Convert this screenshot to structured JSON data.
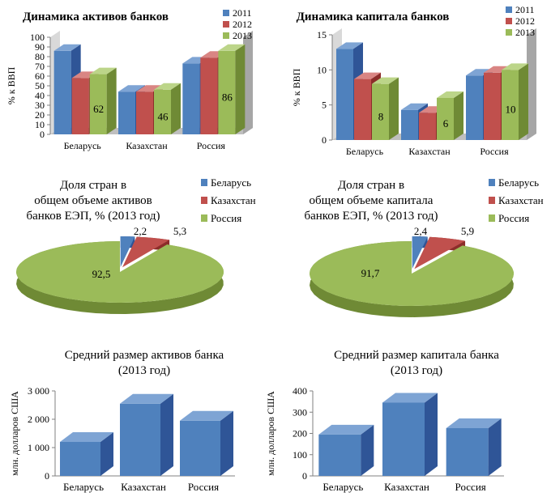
{
  "colors": {
    "blue": "#4f81bd",
    "blue_side": "#2f5597",
    "blue_top": "#7ea4d4",
    "red": "#c0504d",
    "red_side": "#8c2d2a",
    "red_top": "#d98583",
    "green": "#9bbb59",
    "green_side": "#6f8a35",
    "green_top": "#bcd589",
    "wall": "#bfbfbf",
    "wall_side": "#a6a6a6",
    "axis": "#808080"
  },
  "chart_data": [
    {
      "id": "assets-dynamics",
      "type": "bar",
      "title": "Динамика активов банков",
      "ylabel": "% к ВВП",
      "xlabel": "",
      "ylim": [
        0,
        100
      ],
      "yticks": [
        "0",
        "10",
        "20",
        "30",
        "40",
        "50",
        "60",
        "70",
        "80",
        "90",
        "100"
      ],
      "categories": [
        "Беларусь",
        "Казахстан",
        "Россия"
      ],
      "series": [
        {
          "name": "2011",
          "values": [
            86,
            44,
            73
          ]
        },
        {
          "name": "2012",
          "values": [
            58,
            44,
            79
          ]
        },
        {
          "name": "2013",
          "values": [
            62,
            46,
            86
          ]
        }
      ],
      "data_labels": [
        "62",
        "46",
        "86"
      ],
      "legend": "top-right"
    },
    {
      "id": "capital-dynamics",
      "type": "bar",
      "title": "Динамика капитала банков",
      "ylabel": "% к ВВП",
      "xlabel": "",
      "ylim": [
        0,
        15
      ],
      "yticks": [
        "0",
        "5",
        "10",
        "15"
      ],
      "categories": [
        "Беларусь",
        "Казахстан",
        "Россия"
      ],
      "series": [
        {
          "name": "2011",
          "values": [
            13,
            4.3,
            9.2
          ]
        },
        {
          "name": "2012",
          "values": [
            8.7,
            3.9,
            9.6
          ]
        },
        {
          "name": "2013",
          "values": [
            8,
            6,
            10
          ]
        }
      ],
      "data_labels": [
        "8",
        "6",
        "10"
      ],
      "legend": "top-right"
    },
    {
      "id": "assets-share",
      "type": "pie",
      "title": "Доля стран в общем объеме активов банков ЕЭП, % (2013 год)",
      "title_lines": [
        "Доля стран в",
        "общем объеме активов",
        "банков ЕЭП, % (2013 год)"
      ],
      "categories": [
        "Беларусь",
        "Казахстан",
        "Россия"
      ],
      "values": [
        2.2,
        5.3,
        92.5
      ],
      "value_labels": [
        "2,2",
        "5,3",
        "92,5"
      ],
      "legend": "top-right"
    },
    {
      "id": "capital-share",
      "type": "pie",
      "title": "Доля стран в общем объеме капитала банков ЕЭП, % (2013 год)",
      "title_lines": [
        "Доля стран в",
        "общем объеме капитала",
        "банков ЕЭП, % (2013 год)"
      ],
      "categories": [
        "Беларусь",
        "Казахстан",
        "Россия"
      ],
      "values": [
        2.4,
        5.9,
        91.7
      ],
      "value_labels": [
        "2,4",
        "5,9",
        "91,7"
      ],
      "legend": "top-right"
    },
    {
      "id": "avg-assets",
      "type": "bar",
      "title": "Средний размер активов банка (2013 год)",
      "title_lines": [
        "Средний размер активов банка",
        "(2013 год)"
      ],
      "ylabel": "млн. долларов США",
      "xlabel": "",
      "ylim": [
        0,
        3000
      ],
      "yticks": [
        "0",
        "1 000",
        "2 000",
        "3 000"
      ],
      "categories": [
        "Беларусь",
        "Казахстан",
        "Россия"
      ],
      "values": [
        1200,
        2550,
        1950
      ]
    },
    {
      "id": "avg-capital",
      "type": "bar",
      "title": "Средний размер капитала банка (2013 год)",
      "title_lines": [
        "Средний размер капитала банка",
        "(2013 год)"
      ],
      "ylabel": "млн. долларов США",
      "xlabel": "",
      "ylim": [
        0,
        400
      ],
      "yticks": [
        "0",
        "100",
        "200",
        "300",
        "400"
      ],
      "categories": [
        "Беларусь",
        "Казахстан",
        "Россия"
      ],
      "values": [
        195,
        345,
        225
      ]
    }
  ]
}
